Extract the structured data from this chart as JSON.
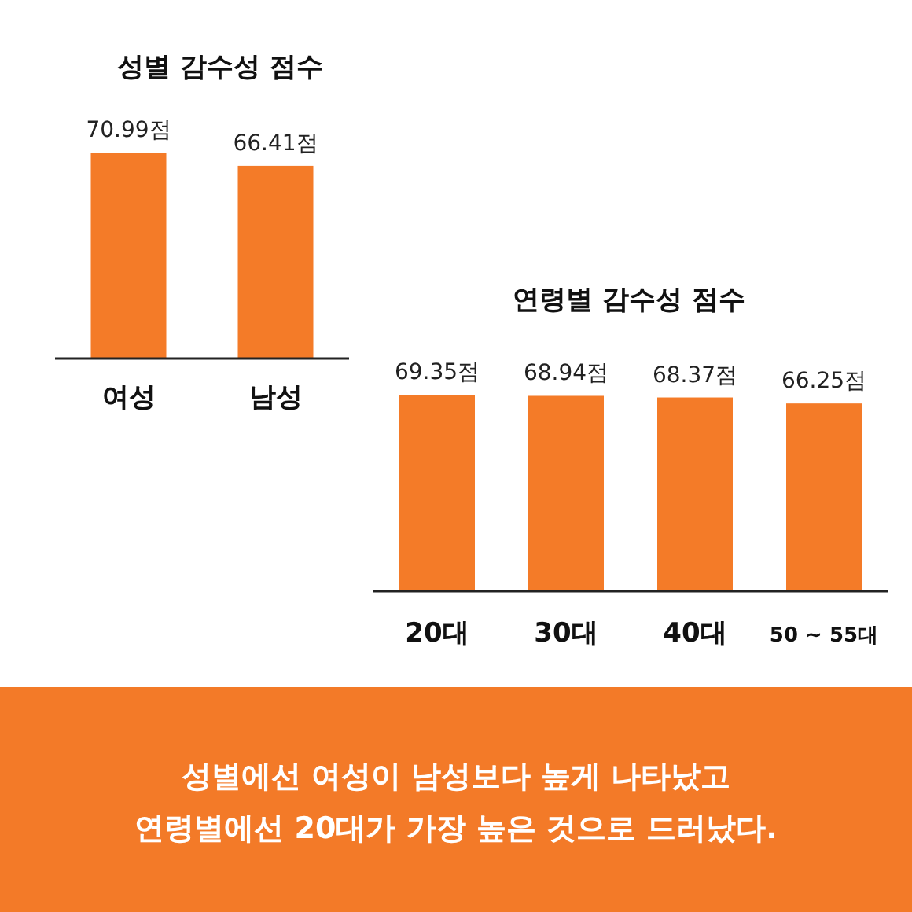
{
  "chart_data": [
    {
      "type": "bar",
      "title": "성별 감수성 점수",
      "categories": [
        "여성",
        "남성"
      ],
      "values": [
        70.99,
        66.41
      ],
      "value_labels": [
        "70.99점",
        "66.41점"
      ],
      "color": "#f47b28"
    },
    {
      "type": "bar",
      "title": "연령별 감수성 점수",
      "categories": [
        "20대",
        "30대",
        "40대",
        "50 ~ 55대"
      ],
      "values": [
        69.35,
        68.94,
        68.37,
        66.25
      ],
      "value_labels": [
        "69.35점",
        "68.94점",
        "68.37점",
        "66.25점"
      ],
      "color": "#f47b28",
      "annotations": [
        "성별에선 여성이 남성보다 높게 나타났고",
        "연령별에선 20대가 가장 높은 것으로 드러났다."
      ]
    }
  ]
}
